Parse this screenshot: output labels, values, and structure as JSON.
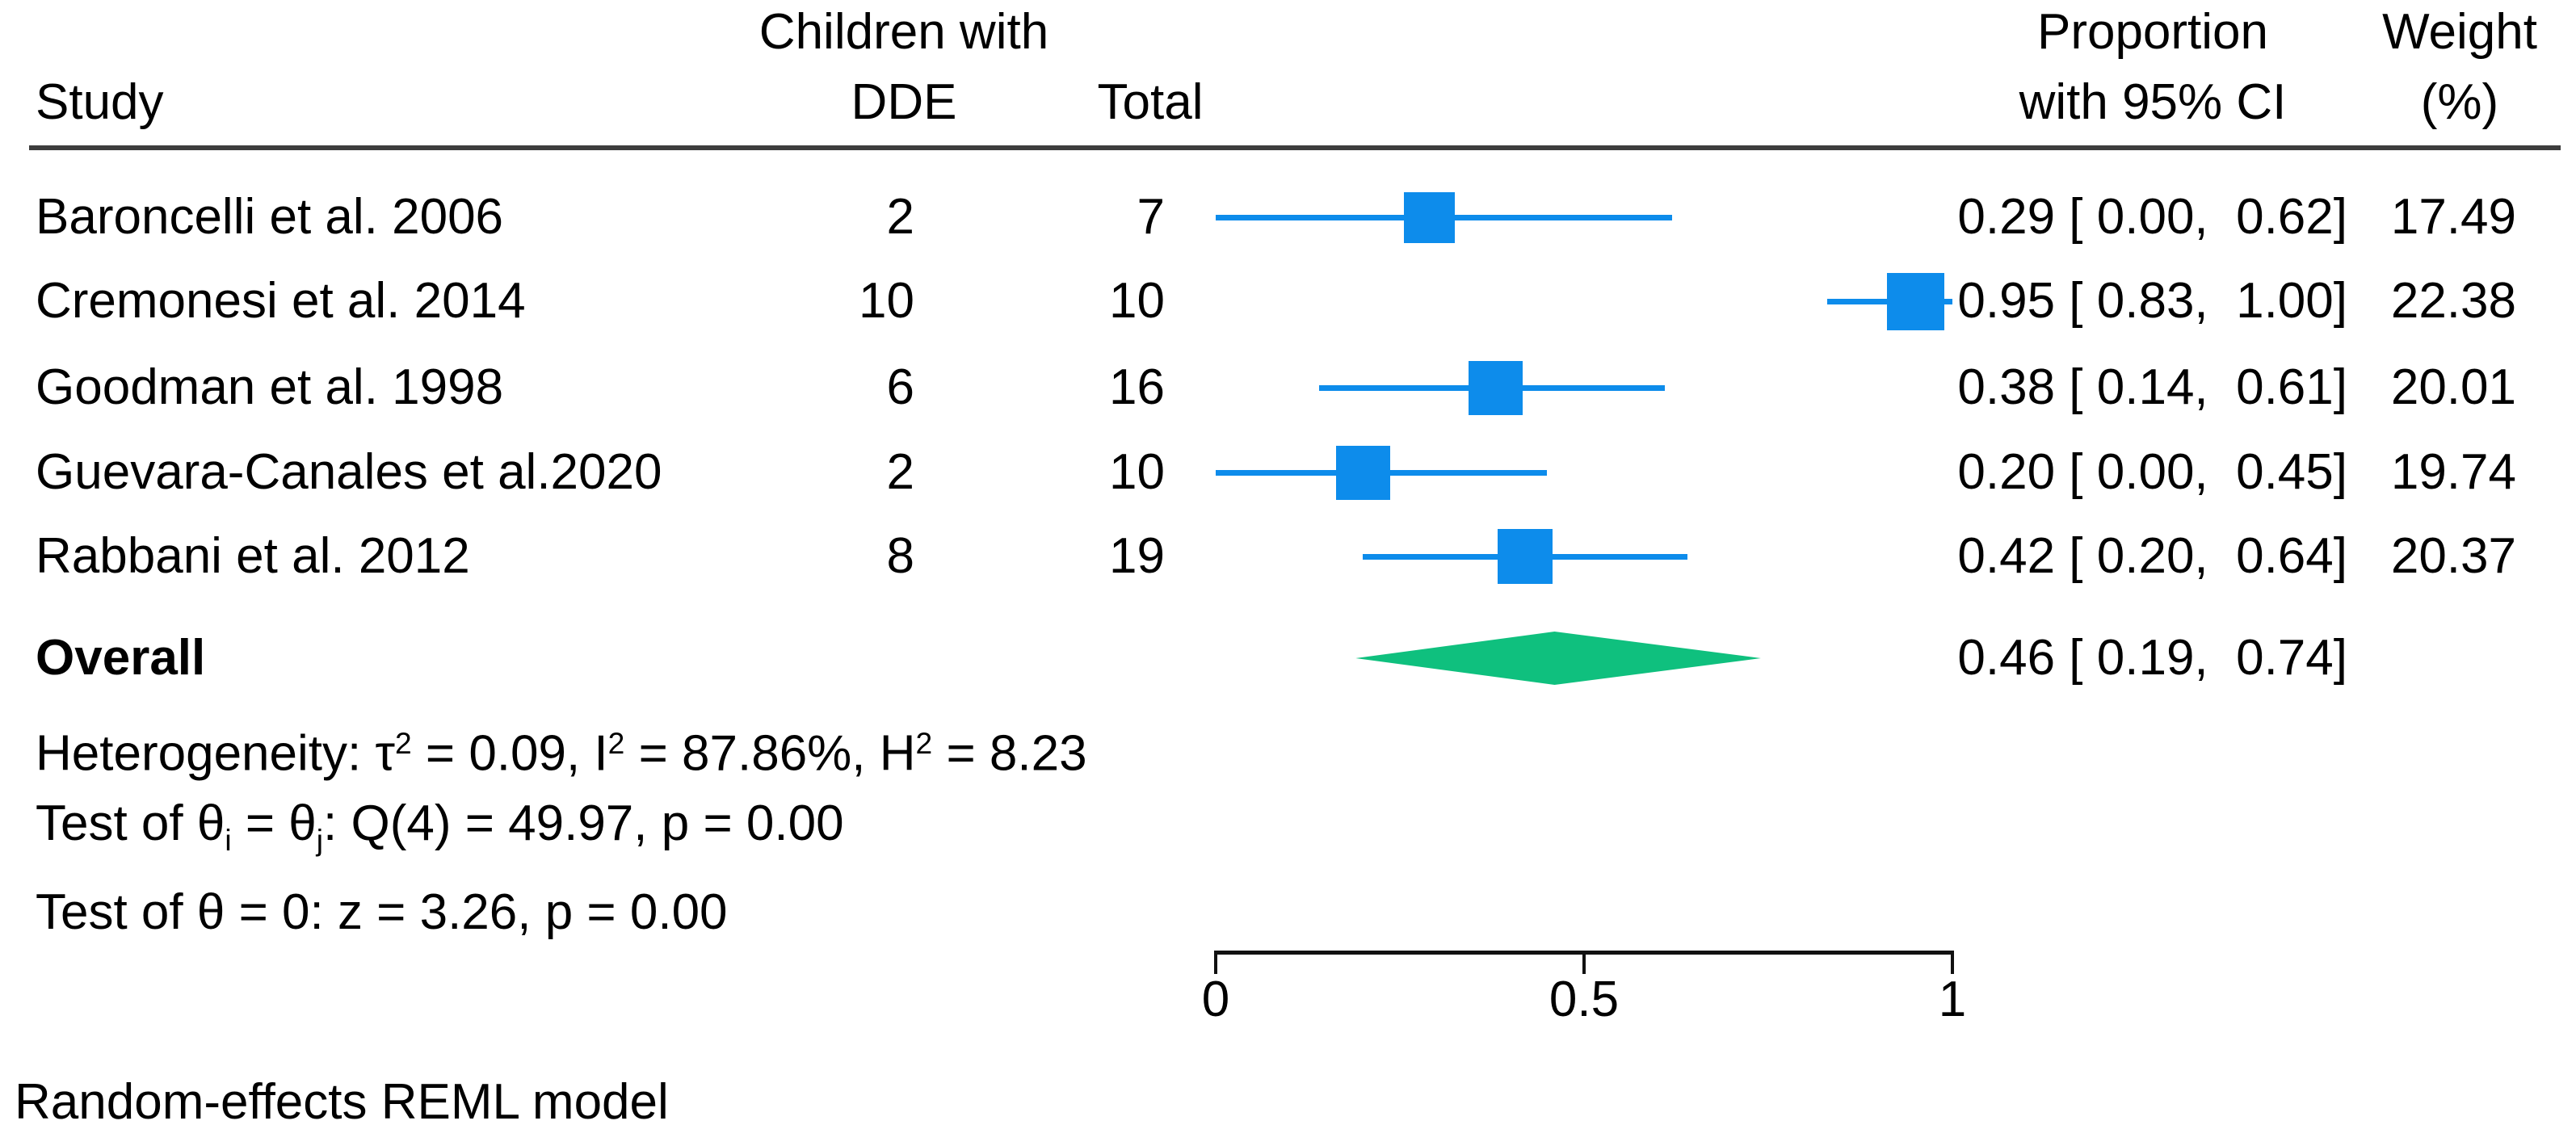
{
  "header": {
    "study": "Study",
    "children_with": "Children with",
    "dde": "DDE",
    "total": "Total",
    "proportion": "Proportion",
    "with_ci": "with 95% CI",
    "weight": "Weight",
    "weight_unit": "(%)"
  },
  "chart_data": {
    "type": "forest",
    "x_axis": {
      "range": [
        0,
        1
      ],
      "ticks": [
        {
          "value": 0,
          "label": "0"
        },
        {
          "value": 0.5,
          "label": "0.5"
        },
        {
          "value": 1,
          "label": "1"
        }
      ]
    },
    "studies": [
      {
        "name": "Baroncelli et al. 2006",
        "dde": "2",
        "total": "7",
        "estimate": 0.29,
        "ci_low": 0.0,
        "ci_high": 0.62,
        "ci_label": "0.29 [ 0.00,  0.62]",
        "weight": 17.49,
        "weight_label": "17.49"
      },
      {
        "name": "Cremonesi et al. 2014",
        "dde": "10",
        "total": "10",
        "estimate": 0.95,
        "ci_low": 0.83,
        "ci_high": 1.0,
        "ci_label": "0.95 [ 0.83,  1.00]",
        "weight": 22.38,
        "weight_label": "22.38"
      },
      {
        "name": "Goodman et al. 1998",
        "dde": "6",
        "total": "16",
        "estimate": 0.38,
        "ci_low": 0.14,
        "ci_high": 0.61,
        "ci_label": "0.38 [ 0.14,  0.61]",
        "weight": 20.01,
        "weight_label": "20.01"
      },
      {
        "name": "Guevara-Canales et al.2020",
        "dde": "2",
        "total": "10",
        "estimate": 0.2,
        "ci_low": 0.0,
        "ci_high": 0.45,
        "ci_label": "0.20 [ 0.00,  0.45]",
        "weight": 19.74,
        "weight_label": "19.74"
      },
      {
        "name": "Rabbani et al. 2012",
        "dde": "8",
        "total": "19",
        "estimate": 0.42,
        "ci_low": 0.2,
        "ci_high": 0.64,
        "ci_label": "0.42 [ 0.20,  0.64]",
        "weight": 20.37,
        "weight_label": "20.37"
      }
    ],
    "overall": {
      "label": "Overall",
      "estimate": 0.46,
      "ci_low": 0.19,
      "ci_high": 0.74,
      "ci_label": "0.46 [ 0.19,  0.74]"
    },
    "colors": {
      "marker_blue": "#0d8ceb",
      "diamond_green": "#0fc07e"
    }
  },
  "stats": {
    "heterogeneity_parts": [
      {
        "t": "Heterogeneity: τ"
      },
      {
        "t": "2",
        "s": "sup"
      },
      {
        "t": " = 0.09, I"
      },
      {
        "t": "2",
        "s": "sup"
      },
      {
        "t": " = 87.86%, H"
      },
      {
        "t": "2",
        "s": "sup"
      },
      {
        "t": " = 8.23"
      }
    ],
    "test_equal_parts": [
      {
        "t": "Test of θ"
      },
      {
        "t": "i",
        "s": "sub"
      },
      {
        "t": " = θ"
      },
      {
        "t": "j",
        "s": "sub"
      },
      {
        "t": ": Q(4) = 49.97, p = 0.00"
      }
    ],
    "test_zero_parts": [
      {
        "t": "Test of θ = 0: z = 3.26, p = 0.00"
      }
    ]
  },
  "footer": {
    "note": "Random-effects REML model"
  }
}
